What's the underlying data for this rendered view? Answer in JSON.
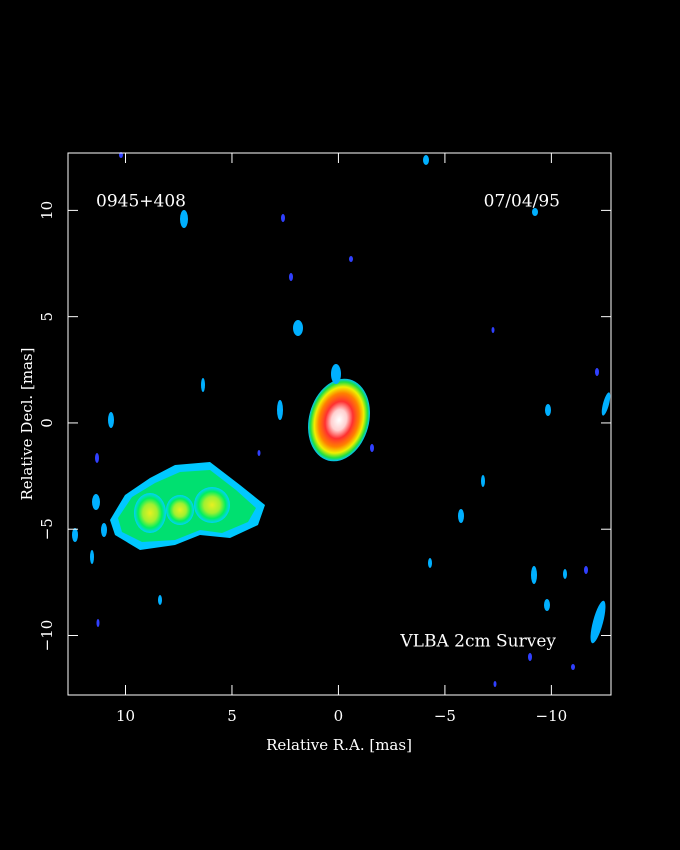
{
  "chart_data": {
    "type": "image",
    "annotations": [
      "0945+408",
      "07/04/95",
      "VLBA 2cm Survey"
    ],
    "x_label": "Relative R.A. [mas]",
    "y_label": "Relative Decl. [mas]",
    "xlim": [
      12.7,
      -12.8
    ],
    "ylim": [
      -12.8,
      12.7
    ],
    "xticks": [
      10,
      5,
      0,
      {
        "value": -5,
        "label": "−5"
      },
      {
        "value": -10,
        "label": "−10"
      }
    ],
    "yticks": [
      {
        "value": -10,
        "label": "−10"
      },
      {
        "value": -5,
        "label": "−5"
      },
      0,
      5,
      10
    ]
  }
}
